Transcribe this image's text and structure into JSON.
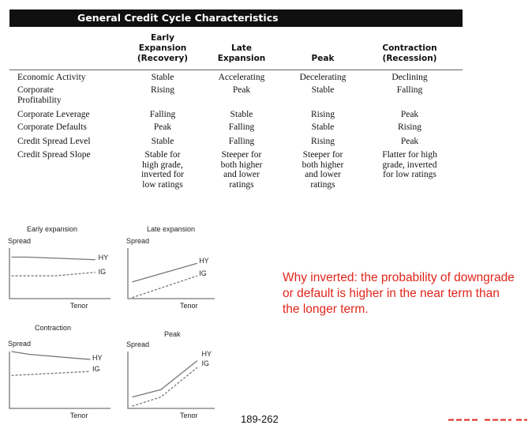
{
  "table": {
    "title": "General Credit Cycle Characteristics",
    "columns": [
      [
        "Early",
        "Expansion",
        "(Recovery)"
      ],
      [
        "Late",
        "Expansion"
      ],
      [
        "Peak"
      ],
      [
        "Contraction",
        "(Recession)"
      ]
    ],
    "rows": [
      {
        "label": [
          "Economic Activity"
        ],
        "cells": [
          [
            "Stable"
          ],
          [
            "Accelerating"
          ],
          [
            "Decelerating"
          ],
          [
            "Declining"
          ]
        ]
      },
      {
        "label": [
          "Corporate",
          "Profitability"
        ],
        "cells": [
          [
            "Rising"
          ],
          [
            "Peak"
          ],
          [
            "Stable"
          ],
          [
            "Falling"
          ]
        ]
      },
      {
        "label": [
          "Corporate Leverage"
        ],
        "cells": [
          [
            "Falling"
          ],
          [
            "Stable"
          ],
          [
            "Rising"
          ],
          [
            "Peak"
          ]
        ]
      },
      {
        "label": [
          "Corporate Defaults"
        ],
        "cells": [
          [
            "Peak"
          ],
          [
            "Falling"
          ],
          [
            "Stable"
          ],
          [
            "Rising"
          ]
        ]
      },
      {
        "label": [
          "Credit Spread Level"
        ],
        "cells": [
          [
            "Stable"
          ],
          [
            "Falling"
          ],
          [
            "Rising"
          ],
          [
            "Peak"
          ]
        ]
      },
      {
        "label": [
          "Credit Spread Slope"
        ],
        "cells": [
          [
            "Stable for",
            "high grade,",
            "inverted for",
            "low ratings"
          ],
          [
            "Steeper for",
            "both higher",
            "and lower",
            "ratings"
          ],
          [
            "Steeper for",
            "both higher",
            "and lower",
            "ratings"
          ],
          [
            "Flatter for high",
            "grade, inverted",
            "for low ratings"
          ]
        ]
      }
    ]
  },
  "charts": [
    {
      "title": "Early expansion",
      "y_label": "Spread",
      "x_label": "Tenor",
      "hy_label": "HY",
      "ig_label": "IG",
      "shape": "HY high flat, IG low flat"
    },
    {
      "title": "Late expansion",
      "y_label": "Spread",
      "x_label": "Tenor",
      "hy_label": "HY",
      "ig_label": "IG",
      "shape": "both upward sloping"
    },
    {
      "title": "Contraction",
      "y_label": "Spread",
      "x_label": "Tenor",
      "hy_label": "HY",
      "ig_label": "IG",
      "shape": "HY downward, IG flat"
    },
    {
      "title": "Peak",
      "y_label": "Spread",
      "x_label": "Tenor",
      "hy_label": "HY",
      "ig_label": "IG",
      "shape": "both steeply upward"
    }
  ],
  "note": "Why inverted: the probability of downgrade or default is higher in the near term than the longer term.",
  "page_number": "189-262",
  "colors": {
    "title_bar": "#101010",
    "note_text": "#e0251b",
    "lines": "#777777"
  }
}
